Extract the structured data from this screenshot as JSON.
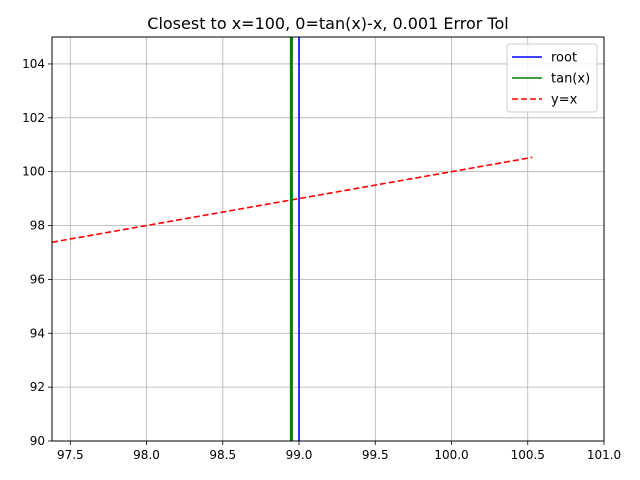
{
  "chart_data": {
    "type": "line",
    "title": "Closest to x=100, 0=tan(x)-x, 0.001 Error Tol",
    "xlabel": "",
    "ylabel": "",
    "xlim": [
      97.38,
      101.0
    ],
    "ylim": [
      90,
      105
    ],
    "x_ticks": [
      97.5,
      98.0,
      98.5,
      99.0,
      99.5,
      100.0,
      100.5,
      101.0
    ],
    "x_tick_labels": [
      "97.5",
      "98.0",
      "98.5",
      "99.0",
      "99.5",
      "100.0",
      "100.5",
      "101.0"
    ],
    "y_ticks": [
      90,
      92,
      94,
      96,
      98,
      100,
      102,
      104
    ],
    "y_tick_labels": [
      "90",
      "92",
      "94",
      "96",
      "98",
      "100",
      "102",
      "104"
    ],
    "grid": true,
    "legend_position": "top-right",
    "series": [
      {
        "name": "root",
        "color": "#0000ff",
        "style": "solid",
        "x": [
          99.0,
          99.0
        ],
        "y": [
          90,
          105
        ]
      },
      {
        "name": "tan(x)",
        "color": "#008000",
        "style": "solid",
        "x": [
          98.95,
          98.95
        ],
        "y": [
          90,
          105
        ]
      },
      {
        "name": "y=x",
        "color": "#ff0000",
        "style": "dashed",
        "x": [
          97.38,
          100.53
        ],
        "y": [
          97.38,
          100.53
        ]
      }
    ]
  }
}
